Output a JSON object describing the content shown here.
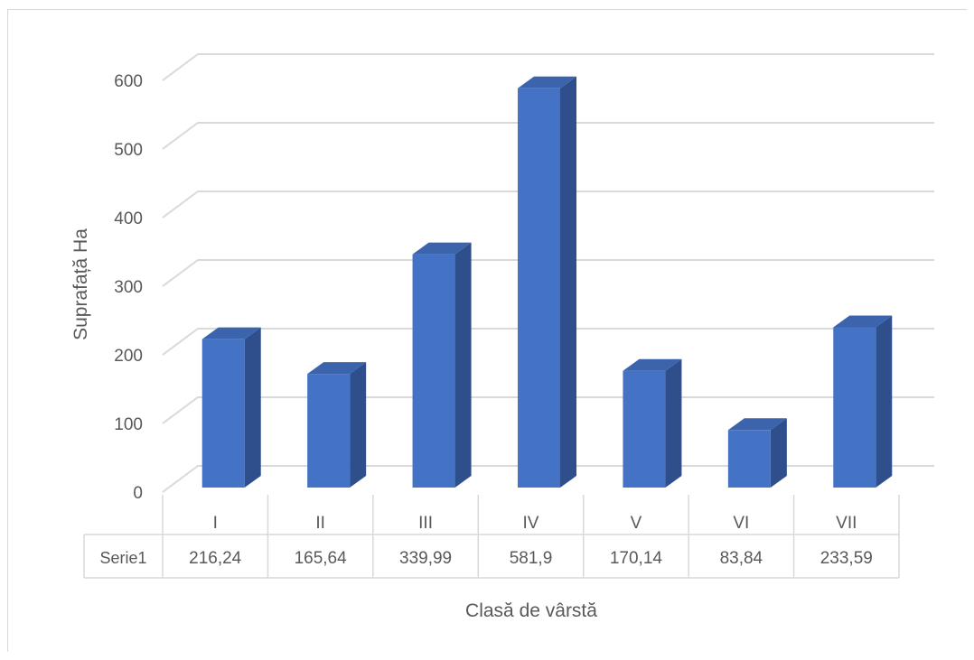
{
  "chart_data": {
    "type": "bar",
    "variant": "3d-column-with-data-table",
    "categories": [
      "I",
      "II",
      "III",
      "IV",
      "V",
      "VI",
      "VII"
    ],
    "series": [
      {
        "name": "Serie1",
        "values": [
          216.24,
          165.64,
          339.99,
          581.9,
          170.14,
          83.84,
          233.59
        ],
        "value_labels": [
          "216,24",
          "165,64",
          "339,99",
          "581,9",
          "170,14",
          "83,84",
          "233,59"
        ]
      }
    ],
    "xlabel": "Clasă de vârstă",
    "ylabel": "Suprafață Ha",
    "ylim": [
      0,
      600
    ],
    "yticks": [
      0,
      100,
      200,
      300,
      400,
      500,
      600
    ],
    "grid": true,
    "legend": "none",
    "colors": {
      "bar_front": "#4472c4",
      "bar_side": "#2f4f8c",
      "bar_top": "#3c64ad",
      "grid": "#d9d9d9",
      "text": "#595959"
    }
  }
}
